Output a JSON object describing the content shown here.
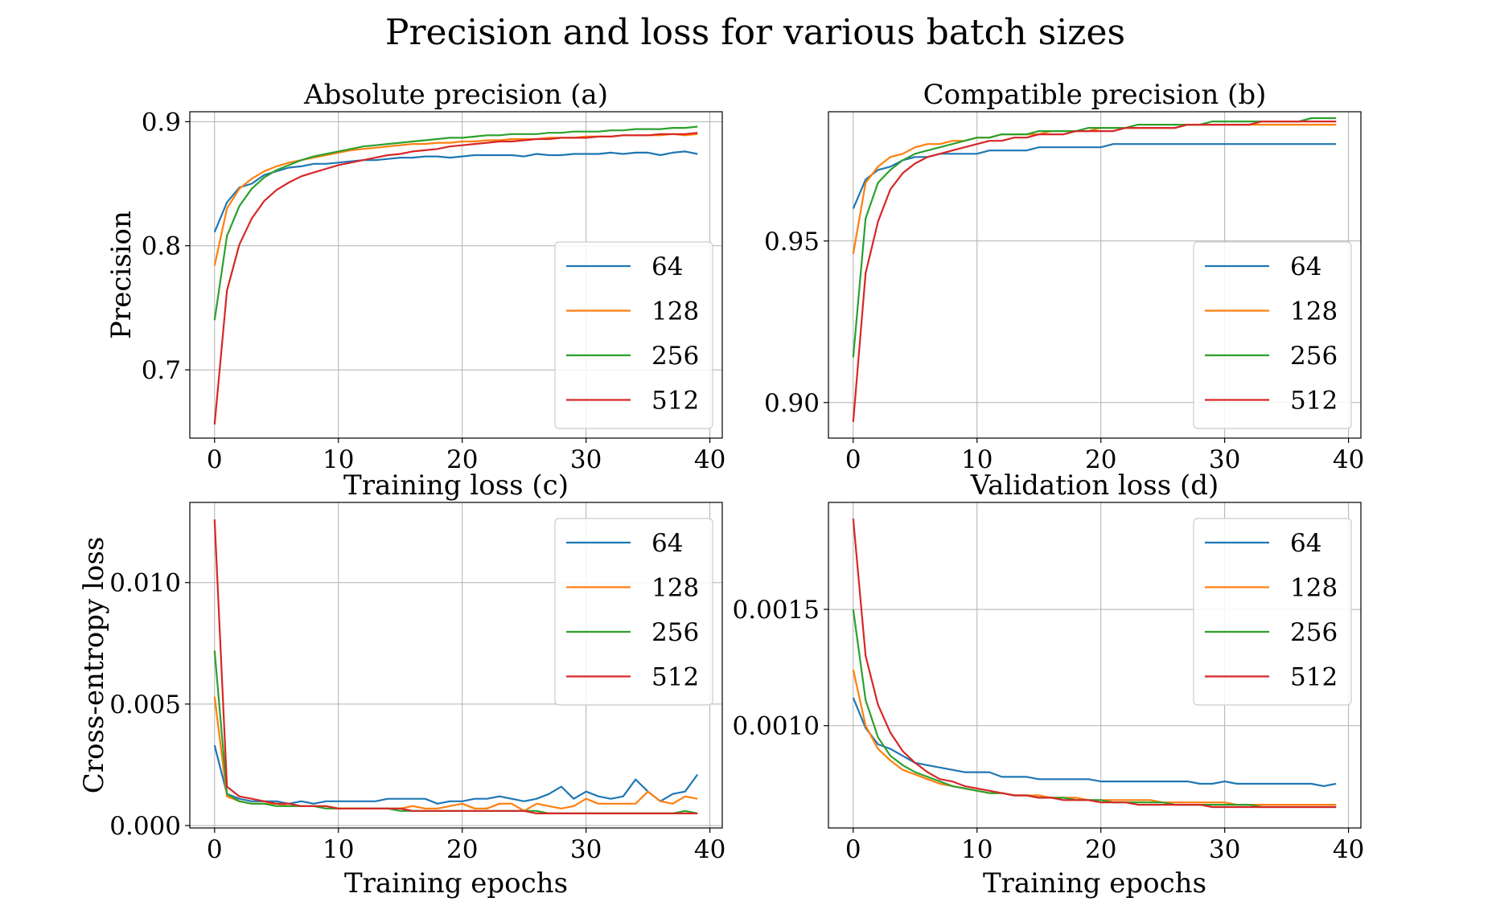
{
  "suptitle": "Precision and loss for various batch sizes",
  "colors": {
    "64": "#1f77b4",
    "128": "#ff7f0e",
    "256": "#2ca02c",
    "512": "#d62728"
  },
  "chart_data": [
    {
      "type": "line",
      "title": "Absolute precision (a)",
      "xlabel": "",
      "ylabel": "Precision",
      "xlim": [
        -2,
        41
      ],
      "ylim": [
        0.645,
        0.908
      ],
      "xticks": [
        0,
        10,
        20,
        30,
        40
      ],
      "xtick_labels": [
        "0",
        "10",
        "20",
        "30",
        "40"
      ],
      "yticks": [
        0.7,
        0.8,
        0.9
      ],
      "ytick_labels": [
        "0.7",
        "0.8",
        "0.9"
      ],
      "legend": "lower-right",
      "grid": true,
      "series": [
        {
          "name": "64",
          "color": "#1f77b4",
          "values": [
            0.811,
            0.835,
            0.847,
            0.85,
            0.857,
            0.86,
            0.863,
            0.864,
            0.866,
            0.866,
            0.867,
            0.868,
            0.869,
            0.869,
            0.87,
            0.871,
            0.871,
            0.872,
            0.872,
            0.871,
            0.872,
            0.873,
            0.873,
            0.873,
            0.873,
            0.872,
            0.874,
            0.873,
            0.873,
            0.874,
            0.874,
            0.874,
            0.875,
            0.874,
            0.875,
            0.875,
            0.873,
            0.875,
            0.876,
            0.874
          ]
        },
        {
          "name": "128",
          "color": "#ff7f0e",
          "values": [
            0.784,
            0.83,
            0.846,
            0.854,
            0.86,
            0.864,
            0.867,
            0.869,
            0.871,
            0.873,
            0.875,
            0.877,
            0.878,
            0.879,
            0.88,
            0.881,
            0.882,
            0.882,
            0.883,
            0.883,
            0.884,
            0.884,
            0.885,
            0.885,
            0.886,
            0.886,
            0.886,
            0.887,
            0.887,
            0.887,
            0.888,
            0.888,
            0.888,
            0.889,
            0.889,
            0.889,
            0.889,
            0.89,
            0.889,
            0.89
          ]
        },
        {
          "name": "256",
          "color": "#2ca02c",
          "values": [
            0.74,
            0.808,
            0.832,
            0.846,
            0.855,
            0.861,
            0.865,
            0.869,
            0.872,
            0.874,
            0.876,
            0.878,
            0.88,
            0.881,
            0.882,
            0.883,
            0.884,
            0.885,
            0.886,
            0.887,
            0.887,
            0.888,
            0.889,
            0.889,
            0.89,
            0.89,
            0.89,
            0.891,
            0.891,
            0.892,
            0.892,
            0.892,
            0.893,
            0.893,
            0.894,
            0.894,
            0.894,
            0.895,
            0.895,
            0.896
          ]
        },
        {
          "name": "512",
          "color": "#d62728",
          "values": [
            0.656,
            0.764,
            0.801,
            0.822,
            0.836,
            0.845,
            0.851,
            0.856,
            0.859,
            0.862,
            0.865,
            0.867,
            0.869,
            0.871,
            0.873,
            0.874,
            0.876,
            0.877,
            0.878,
            0.88,
            0.881,
            0.882,
            0.883,
            0.884,
            0.884,
            0.885,
            0.886,
            0.886,
            0.887,
            0.887,
            0.887,
            0.888,
            0.888,
            0.889,
            0.889,
            0.889,
            0.89,
            0.89,
            0.89,
            0.891
          ]
        }
      ]
    },
    {
      "type": "line",
      "title": "Compatible precision (b)",
      "xlabel": "",
      "ylabel": "",
      "xlim": [
        -2,
        41
      ],
      "ylim": [
        0.889,
        0.99
      ],
      "xticks": [
        0,
        10,
        20,
        30,
        40
      ],
      "xtick_labels": [
        "0",
        "10",
        "20",
        "30",
        "40"
      ],
      "yticks": [
        0.9,
        0.95
      ],
      "ytick_labels": [
        "0.90",
        "0.95"
      ],
      "legend": "lower-right",
      "grid": true,
      "series": [
        {
          "name": "64",
          "color": "#1f77b4",
          "values": [
            0.96,
            0.969,
            0.972,
            0.973,
            0.975,
            0.976,
            0.976,
            0.977,
            0.977,
            0.977,
            0.977,
            0.978,
            0.978,
            0.978,
            0.978,
            0.979,
            0.979,
            0.979,
            0.979,
            0.979,
            0.979,
            0.98,
            0.98,
            0.98,
            0.98,
            0.98,
            0.98,
            0.98,
            0.98,
            0.98,
            0.98,
            0.98,
            0.98,
            0.98,
            0.98,
            0.98,
            0.98,
            0.98,
            0.98,
            0.98
          ]
        },
        {
          "name": "128",
          "color": "#ff7f0e",
          "values": [
            0.946,
            0.968,
            0.973,
            0.976,
            0.977,
            0.979,
            0.98,
            0.98,
            0.981,
            0.981,
            0.982,
            0.982,
            0.983,
            0.983,
            0.983,
            0.983,
            0.984,
            0.984,
            0.984,
            0.984,
            0.985,
            0.985,
            0.985,
            0.985,
            0.985,
            0.985,
            0.985,
            0.986,
            0.986,
            0.986,
            0.986,
            0.986,
            0.986,
            0.986,
            0.986,
            0.986,
            0.986,
            0.986,
            0.986,
            0.986
          ]
        },
        {
          "name": "256",
          "color": "#2ca02c",
          "values": [
            0.914,
            0.957,
            0.968,
            0.972,
            0.975,
            0.977,
            0.978,
            0.979,
            0.98,
            0.981,
            0.982,
            0.982,
            0.983,
            0.983,
            0.983,
            0.984,
            0.984,
            0.984,
            0.984,
            0.985,
            0.985,
            0.985,
            0.985,
            0.986,
            0.986,
            0.986,
            0.986,
            0.986,
            0.986,
            0.987,
            0.987,
            0.987,
            0.987,
            0.987,
            0.987,
            0.987,
            0.987,
            0.988,
            0.988,
            0.988
          ]
        },
        {
          "name": "512",
          "color": "#d62728",
          "values": [
            0.894,
            0.94,
            0.956,
            0.966,
            0.971,
            0.974,
            0.976,
            0.977,
            0.978,
            0.979,
            0.98,
            0.981,
            0.981,
            0.982,
            0.982,
            0.983,
            0.983,
            0.983,
            0.984,
            0.984,
            0.984,
            0.984,
            0.985,
            0.985,
            0.985,
            0.985,
            0.985,
            0.986,
            0.986,
            0.986,
            0.986,
            0.986,
            0.986,
            0.987,
            0.987,
            0.987,
            0.987,
            0.987,
            0.987,
            0.987
          ]
        }
      ]
    },
    {
      "type": "line",
      "title": "Training loss (c)",
      "xlabel": "Training epochs",
      "ylabel": "Cross-entropy loss",
      "xlim": [
        -2,
        41
      ],
      "ylim": [
        -0.0001,
        0.0133
      ],
      "xticks": [
        0,
        10,
        20,
        30,
        40
      ],
      "xtick_labels": [
        "0",
        "10",
        "20",
        "30",
        "40"
      ],
      "yticks": [
        0.0,
        0.005,
        0.01
      ],
      "ytick_labels": [
        "0.000",
        "0.005",
        "0.010"
      ],
      "legend": "upper-right",
      "grid": true,
      "series": [
        {
          "name": "64",
          "color": "#1f77b4",
          "values": [
            0.0033,
            0.0013,
            0.0011,
            0.001,
            0.001,
            0.001,
            0.0009,
            0.001,
            0.0009,
            0.001,
            0.001,
            0.001,
            0.001,
            0.001,
            0.0011,
            0.0011,
            0.0011,
            0.0011,
            0.0009,
            0.001,
            0.001,
            0.0011,
            0.0011,
            0.0012,
            0.0011,
            0.001,
            0.0011,
            0.0013,
            0.0016,
            0.0011,
            0.0014,
            0.0012,
            0.0011,
            0.0012,
            0.0019,
            0.0014,
            0.001,
            0.0013,
            0.0014,
            0.0021
          ]
        },
        {
          "name": "128",
          "color": "#ff7f0e",
          "values": [
            0.0053,
            0.0012,
            0.001,
            0.0009,
            0.0009,
            0.0009,
            0.0008,
            0.0008,
            0.0008,
            0.0008,
            0.0007,
            0.0007,
            0.0007,
            0.0007,
            0.0007,
            0.0007,
            0.0008,
            0.0007,
            0.0007,
            0.0008,
            0.0009,
            0.0007,
            0.0007,
            0.0009,
            0.0009,
            0.0006,
            0.0009,
            0.0008,
            0.0007,
            0.0008,
            0.0011,
            0.0009,
            0.0009,
            0.0009,
            0.0009,
            0.0014,
            0.001,
            0.0009,
            0.0012,
            0.0011
          ]
        },
        {
          "name": "256",
          "color": "#2ca02c",
          "values": [
            0.0072,
            0.0013,
            0.001,
            0.0009,
            0.0009,
            0.0008,
            0.0008,
            0.0008,
            0.0008,
            0.0007,
            0.0007,
            0.0007,
            0.0007,
            0.0007,
            0.0007,
            0.0006,
            0.0006,
            0.0006,
            0.0006,
            0.0006,
            0.0006,
            0.0006,
            0.0006,
            0.0006,
            0.0006,
            0.0006,
            0.0006,
            0.0005,
            0.0005,
            0.0005,
            0.0005,
            0.0005,
            0.0005,
            0.0005,
            0.0005,
            0.0005,
            0.0005,
            0.0005,
            0.0006,
            0.0005
          ]
        },
        {
          "name": "512",
          "color": "#d62728",
          "values": [
            0.0126,
            0.0016,
            0.0012,
            0.0011,
            0.001,
            0.0009,
            0.0009,
            0.0008,
            0.0008,
            0.0008,
            0.0007,
            0.0007,
            0.0007,
            0.0007,
            0.0007,
            0.0007,
            0.0006,
            0.0006,
            0.0006,
            0.0006,
            0.0006,
            0.0006,
            0.0006,
            0.0006,
            0.0006,
            0.0006,
            0.0005,
            0.0005,
            0.0005,
            0.0005,
            0.0005,
            0.0005,
            0.0005,
            0.0005,
            0.0005,
            0.0005,
            0.0005,
            0.0005,
            0.0005,
            0.0005
          ]
        }
      ]
    },
    {
      "type": "line",
      "title": "Validation loss (d)",
      "xlabel": "Training epochs",
      "ylabel": "",
      "xlim": [
        -2,
        41
      ],
      "ylim": [
        0.00056,
        0.00196
      ],
      "xticks": [
        0,
        10,
        20,
        30,
        40
      ],
      "xtick_labels": [
        "0",
        "10",
        "20",
        "30",
        "40"
      ],
      "yticks": [
        0.001,
        0.0015
      ],
      "ytick_labels": [
        "0.0010",
        "0.0015"
      ],
      "legend": "upper-right",
      "grid": true,
      "series": [
        {
          "name": "64",
          "color": "#1f77b4",
          "values": [
            0.00112,
            0.00099,
            0.00092,
            0.0009,
            0.00087,
            0.00084,
            0.00083,
            0.00082,
            0.00081,
            0.0008,
            0.0008,
            0.0008,
            0.00078,
            0.00078,
            0.00078,
            0.00077,
            0.00077,
            0.00077,
            0.00077,
            0.00077,
            0.00076,
            0.00076,
            0.00076,
            0.00076,
            0.00076,
            0.00076,
            0.00076,
            0.00076,
            0.00075,
            0.00075,
            0.00076,
            0.00075,
            0.00075,
            0.00075,
            0.00075,
            0.00075,
            0.00075,
            0.00075,
            0.00074,
            0.00075
          ]
        },
        {
          "name": "128",
          "color": "#ff7f0e",
          "values": [
            0.00124,
            0.001,
            0.0009,
            0.00085,
            0.00081,
            0.00079,
            0.00077,
            0.00075,
            0.00074,
            0.00073,
            0.00072,
            0.00071,
            0.00071,
            0.0007,
            0.0007,
            0.0007,
            0.00069,
            0.00069,
            0.00069,
            0.00068,
            0.00068,
            0.00068,
            0.00068,
            0.00068,
            0.00068,
            0.00067,
            0.00067,
            0.00067,
            0.00067,
            0.00067,
            0.00067,
            0.00066,
            0.00066,
            0.00066,
            0.00066,
            0.00066,
            0.00066,
            0.00066,
            0.00066,
            0.00066
          ]
        },
        {
          "name": "256",
          "color": "#2ca02c",
          "values": [
            0.0015,
            0.00111,
            0.00095,
            0.00087,
            0.00083,
            0.0008,
            0.00078,
            0.00076,
            0.00074,
            0.00073,
            0.00072,
            0.00071,
            0.00071,
            0.0007,
            0.0007,
            0.00069,
            0.00069,
            0.00069,
            0.00068,
            0.00068,
            0.00068,
            0.00067,
            0.00067,
            0.00067,
            0.00067,
            0.00067,
            0.00066,
            0.00066,
            0.00066,
            0.00066,
            0.00066,
            0.00066,
            0.00066,
            0.00065,
            0.00065,
            0.00065,
            0.00065,
            0.00065,
            0.00065,
            0.00065
          ]
        },
        {
          "name": "512",
          "color": "#d62728",
          "values": [
            0.00189,
            0.0013,
            0.00109,
            0.00097,
            0.00089,
            0.00084,
            0.0008,
            0.00077,
            0.00076,
            0.00074,
            0.00073,
            0.00072,
            0.00071,
            0.0007,
            0.0007,
            0.00069,
            0.00069,
            0.00068,
            0.00068,
            0.00068,
            0.00067,
            0.00067,
            0.00067,
            0.00066,
            0.00066,
            0.00066,
            0.00066,
            0.00066,
            0.00066,
            0.00065,
            0.00065,
            0.00065,
            0.00065,
            0.00065,
            0.00065,
            0.00065,
            0.00065,
            0.00065,
            0.00065,
            0.00065
          ]
        }
      ]
    }
  ]
}
